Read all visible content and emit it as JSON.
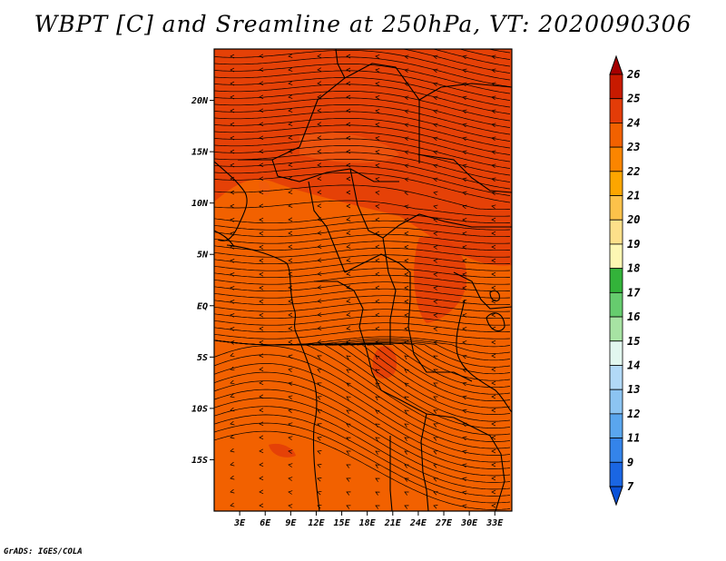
{
  "title": "WBPT [C] and Sreamline at 250hPa, VT: 2020090306",
  "credit": "GrADS: IGES/COLA",
  "map": {
    "lat_labels": [
      "20N",
      "15N",
      "10N",
      "5N",
      "EQ",
      "5S",
      "10S",
      "15S"
    ],
    "lat_values": [
      20,
      15,
      10,
      5,
      0,
      -5,
      -10,
      -15
    ],
    "lon_labels": [
      "3E",
      "6E",
      "9E",
      "12E",
      "15E",
      "18E",
      "21E",
      "24E",
      "27E",
      "30E",
      "33E"
    ],
    "lon_values": [
      3,
      6,
      9,
      12,
      15,
      18,
      21,
      24,
      27,
      30,
      33
    ],
    "lat_range": [
      -20,
      25
    ],
    "lon_range": [
      0,
      35
    ],
    "background_color": "#f26100",
    "warm_color": "#e33c08",
    "stream_color": "#000000"
  },
  "colorbar": {
    "labels": [
      "26",
      "25",
      "24",
      "23",
      "22",
      "21",
      "20",
      "19",
      "18",
      "17",
      "16",
      "15",
      "14",
      "13",
      "12",
      "11",
      "9",
      "7"
    ],
    "colors": [
      "#a50000",
      "#c81a00",
      "#e33c08",
      "#f26100",
      "#fb8500",
      "#fda600",
      "#fdc24a",
      "#fde08a",
      "#fdf7b3",
      "#33b33a",
      "#66cc6e",
      "#a7e3a3",
      "#e2f7ef",
      "#b2d9f7",
      "#8cc4f2",
      "#5aa6ee",
      "#3484ea",
      "#1a66e3",
      "#0a52d8"
    ]
  }
}
